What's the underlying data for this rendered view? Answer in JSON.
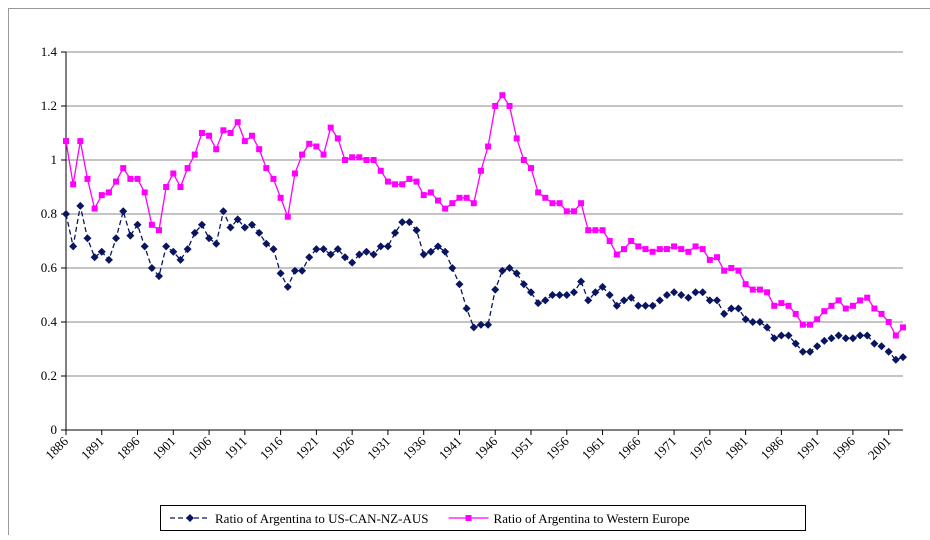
{
  "chart_data": {
    "type": "line",
    "x": [
      1886,
      1887,
      1888,
      1889,
      1890,
      1891,
      1892,
      1893,
      1894,
      1895,
      1896,
      1897,
      1898,
      1899,
      1900,
      1901,
      1902,
      1903,
      1904,
      1905,
      1906,
      1907,
      1908,
      1909,
      1910,
      1911,
      1912,
      1913,
      1914,
      1915,
      1916,
      1917,
      1918,
      1919,
      1920,
      1921,
      1922,
      1923,
      1924,
      1925,
      1926,
      1927,
      1928,
      1929,
      1930,
      1931,
      1932,
      1933,
      1934,
      1935,
      1936,
      1937,
      1938,
      1939,
      1940,
      1941,
      1942,
      1943,
      1944,
      1945,
      1946,
      1947,
      1948,
      1949,
      1950,
      1951,
      1952,
      1953,
      1954,
      1955,
      1956,
      1957,
      1958,
      1959,
      1960,
      1961,
      1962,
      1963,
      1964,
      1965,
      1966,
      1967,
      1968,
      1969,
      1970,
      1971,
      1972,
      1973,
      1974,
      1975,
      1976,
      1977,
      1978,
      1979,
      1980,
      1981,
      1982,
      1983,
      1984,
      1985,
      1986,
      1987,
      1988,
      1989,
      1990,
      1991,
      1992,
      1993,
      1994,
      1995,
      1996,
      1997,
      1998,
      1999,
      2000,
      2001,
      2002,
      2003
    ],
    "series": [
      {
        "name": "Ratio of Argentina to US-CAN-NZ-AUS",
        "color": "#0a1560",
        "dashed": true,
        "marker": "diamond",
        "values": [
          0.8,
          0.68,
          0.83,
          0.71,
          0.64,
          0.66,
          0.63,
          0.71,
          0.81,
          0.72,
          0.76,
          0.68,
          0.6,
          0.57,
          0.68,
          0.66,
          0.63,
          0.67,
          0.73,
          0.76,
          0.71,
          0.69,
          0.81,
          0.75,
          0.78,
          0.75,
          0.76,
          0.73,
          0.69,
          0.67,
          0.58,
          0.53,
          0.59,
          0.59,
          0.64,
          0.67,
          0.67,
          0.65,
          0.67,
          0.64,
          0.62,
          0.65,
          0.66,
          0.65,
          0.68,
          0.68,
          0.73,
          0.77,
          0.77,
          0.74,
          0.65,
          0.66,
          0.68,
          0.66,
          0.6,
          0.54,
          0.45,
          0.38,
          0.39,
          0.39,
          0.52,
          0.59,
          0.6,
          0.58,
          0.54,
          0.51,
          0.47,
          0.48,
          0.5,
          0.5,
          0.5,
          0.51,
          0.55,
          0.48,
          0.51,
          0.53,
          0.5,
          0.46,
          0.48,
          0.49,
          0.46,
          0.46,
          0.46,
          0.48,
          0.5,
          0.51,
          0.5,
          0.49,
          0.51,
          0.51,
          0.48,
          0.48,
          0.43,
          0.45,
          0.45,
          0.41,
          0.4,
          0.4,
          0.38,
          0.34,
          0.35,
          0.35,
          0.32,
          0.29,
          0.29,
          0.31,
          0.33,
          0.34,
          0.35,
          0.34,
          0.34,
          0.35,
          0.35,
          0.32,
          0.31,
          0.29,
          0.26,
          0.27
        ]
      },
      {
        "name": "Ratio of Argentina to Western Europe",
        "color": "#ff00ff",
        "dashed": false,
        "marker": "square",
        "values": [
          1.07,
          0.91,
          1.07,
          0.93,
          0.82,
          0.87,
          0.88,
          0.92,
          0.97,
          0.93,
          0.93,
          0.88,
          0.76,
          0.74,
          0.9,
          0.95,
          0.9,
          0.97,
          1.02,
          1.1,
          1.09,
          1.04,
          1.11,
          1.1,
          1.14,
          1.07,
          1.09,
          1.04,
          0.97,
          0.93,
          0.86,
          0.79,
          0.95,
          1.02,
          1.06,
          1.05,
          1.02,
          1.12,
          1.08,
          1.0,
          1.01,
          1.01,
          1.0,
          1.0,
          0.96,
          0.92,
          0.91,
          0.91,
          0.93,
          0.92,
          0.87,
          0.88,
          0.85,
          0.82,
          0.84,
          0.86,
          0.86,
          0.84,
          0.96,
          1.05,
          1.2,
          1.24,
          1.2,
          1.08,
          1.0,
          0.97,
          0.88,
          0.86,
          0.84,
          0.84,
          0.81,
          0.81,
          0.84,
          0.74,
          0.74,
          0.74,
          0.7,
          0.65,
          0.67,
          0.7,
          0.68,
          0.67,
          0.66,
          0.67,
          0.67,
          0.68,
          0.67,
          0.66,
          0.68,
          0.67,
          0.63,
          0.64,
          0.59,
          0.6,
          0.59,
          0.54,
          0.52,
          0.52,
          0.51,
          0.46,
          0.47,
          0.46,
          0.43,
          0.39,
          0.39,
          0.41,
          0.44,
          0.46,
          0.48,
          0.45,
          0.46,
          0.48,
          0.49,
          0.45,
          0.43,
          0.4,
          0.35,
          0.38
        ]
      }
    ],
    "xlim": [
      1886,
      2003
    ],
    "xticks": [
      1886,
      1891,
      1896,
      1901,
      1906,
      1911,
      1916,
      1921,
      1926,
      1931,
      1936,
      1941,
      1946,
      1951,
      1956,
      1961,
      1966,
      1971,
      1976,
      1981,
      1986,
      1991,
      1996,
      2001
    ],
    "ylim": [
      0,
      1.4
    ],
    "yticks": [
      0,
      0.2,
      0.4,
      0.6,
      0.8,
      1,
      1.2,
      1.4
    ],
    "grid": true,
    "legend": "bottom"
  }
}
